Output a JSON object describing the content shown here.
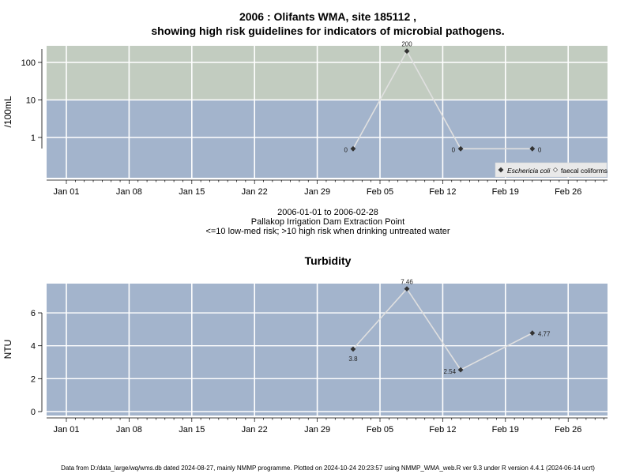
{
  "titles": {
    "line1": "2006 : Olifants WMA, site 185112 ,",
    "line2": "showing high risk guidelines for indicators of microbial pathogens."
  },
  "subtitle": {
    "date_range": "2006-01-01 to 2006-02-28",
    "site_name": "Pallakop Irrigation Dam Extraction Point",
    "guideline": "<=10 low-med risk; >10 high risk when drinking untreated water"
  },
  "footer": "Data from D:/data_large/wq/wms.db dated 2024-08-27, mainly NMMP programme. Plotted on 2024-10-24 20:23:57 using NMMP_WMA_web.R ver 9.3 under R version 4.4.1 (2024-06-14 ucrt)",
  "colors": {
    "panel_low": "#a3b4cc",
    "panel_high": "#c2ccc0",
    "grid": "#ffffff",
    "line": "#e0e0e0",
    "point": "#333333"
  },
  "x_ticks": [
    "Jan 01",
    "Jan 08",
    "Jan 15",
    "Jan 22",
    "Jan 29",
    "Feb 05",
    "Feb 12",
    "Feb 19",
    "Feb 26"
  ],
  "chart_data": [
    {
      "type": "line",
      "title": "",
      "ylabel": "/100mL",
      "y_scale": "log",
      "y_ticks": [
        "1",
        "10",
        "100"
      ],
      "threshold": 10,
      "legend_position": "bottom-right",
      "series": [
        {
          "name": "Eschericia coli",
          "x": [
            "2006-02-02",
            "2006-02-08",
            "2006-02-14",
            "2006-02-22"
          ],
          "y": [
            0,
            200,
            0,
            0
          ],
          "labels": [
            "0",
            "200",
            "0",
            "0"
          ]
        }
      ],
      "legend_items": [
        "Eschericia coli",
        "faecal coliforms"
      ]
    },
    {
      "type": "line",
      "title": "Turbidity",
      "ylabel": "NTU",
      "y_ticks": [
        "0",
        "2",
        "4",
        "6"
      ],
      "series": [
        {
          "x": [
            "2006-02-02",
            "2006-02-08",
            "2006-02-14",
            "2006-02-22"
          ],
          "y": [
            3.8,
            7.46,
            2.54,
            4.77
          ],
          "labels": [
            "3.8",
            "7.46",
            "2.54",
            "4.77"
          ]
        }
      ]
    }
  ]
}
